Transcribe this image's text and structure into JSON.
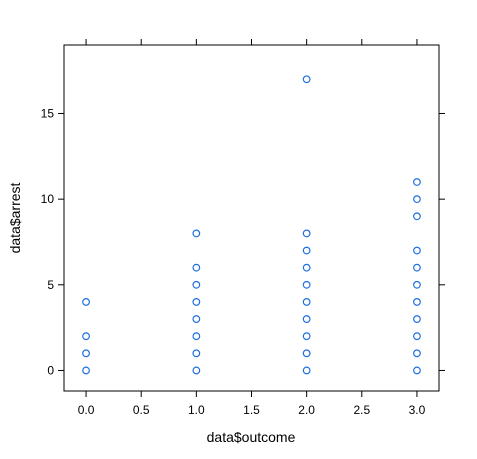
{
  "chart_data": {
    "type": "scatter",
    "title": "",
    "xlabel": "data$outcome",
    "ylabel": "data$arrest",
    "xlim": [
      -0.2,
      3.2
    ],
    "ylim": [
      -1.2,
      19.0
    ],
    "x_ticks": [
      0.0,
      0.5,
      1.0,
      1.5,
      2.0,
      2.5,
      3.0
    ],
    "x_tick_labels": [
      "0.0",
      "0.5",
      "1.0",
      "1.5",
      "2.0",
      "2.5",
      "3.0"
    ],
    "y_ticks": [
      0,
      5,
      10,
      15
    ],
    "y_tick_labels": [
      "0",
      "5",
      "10",
      "15"
    ],
    "grid": false,
    "marker_color": "#1f6fe0",
    "points": [
      {
        "x": 0,
        "y": 0
      },
      {
        "x": 0,
        "y": 1
      },
      {
        "x": 0,
        "y": 2
      },
      {
        "x": 0,
        "y": 4
      },
      {
        "x": 1,
        "y": 0
      },
      {
        "x": 1,
        "y": 1
      },
      {
        "x": 1,
        "y": 2
      },
      {
        "x": 1,
        "y": 3
      },
      {
        "x": 1,
        "y": 4
      },
      {
        "x": 1,
        "y": 5
      },
      {
        "x": 1,
        "y": 6
      },
      {
        "x": 1,
        "y": 8
      },
      {
        "x": 2,
        "y": 0
      },
      {
        "x": 2,
        "y": 1
      },
      {
        "x": 2,
        "y": 2
      },
      {
        "x": 2,
        "y": 3
      },
      {
        "x": 2,
        "y": 4
      },
      {
        "x": 2,
        "y": 5
      },
      {
        "x": 2,
        "y": 6
      },
      {
        "x": 2,
        "y": 7
      },
      {
        "x": 2,
        "y": 8
      },
      {
        "x": 2,
        "y": 17
      },
      {
        "x": 3,
        "y": 0
      },
      {
        "x": 3,
        "y": 1
      },
      {
        "x": 3,
        "y": 2
      },
      {
        "x": 3,
        "y": 3
      },
      {
        "x": 3,
        "y": 4
      },
      {
        "x": 3,
        "y": 5
      },
      {
        "x": 3,
        "y": 6
      },
      {
        "x": 3,
        "y": 7
      },
      {
        "x": 3,
        "y": 9
      },
      {
        "x": 3,
        "y": 10
      },
      {
        "x": 3,
        "y": 11
      }
    ]
  }
}
